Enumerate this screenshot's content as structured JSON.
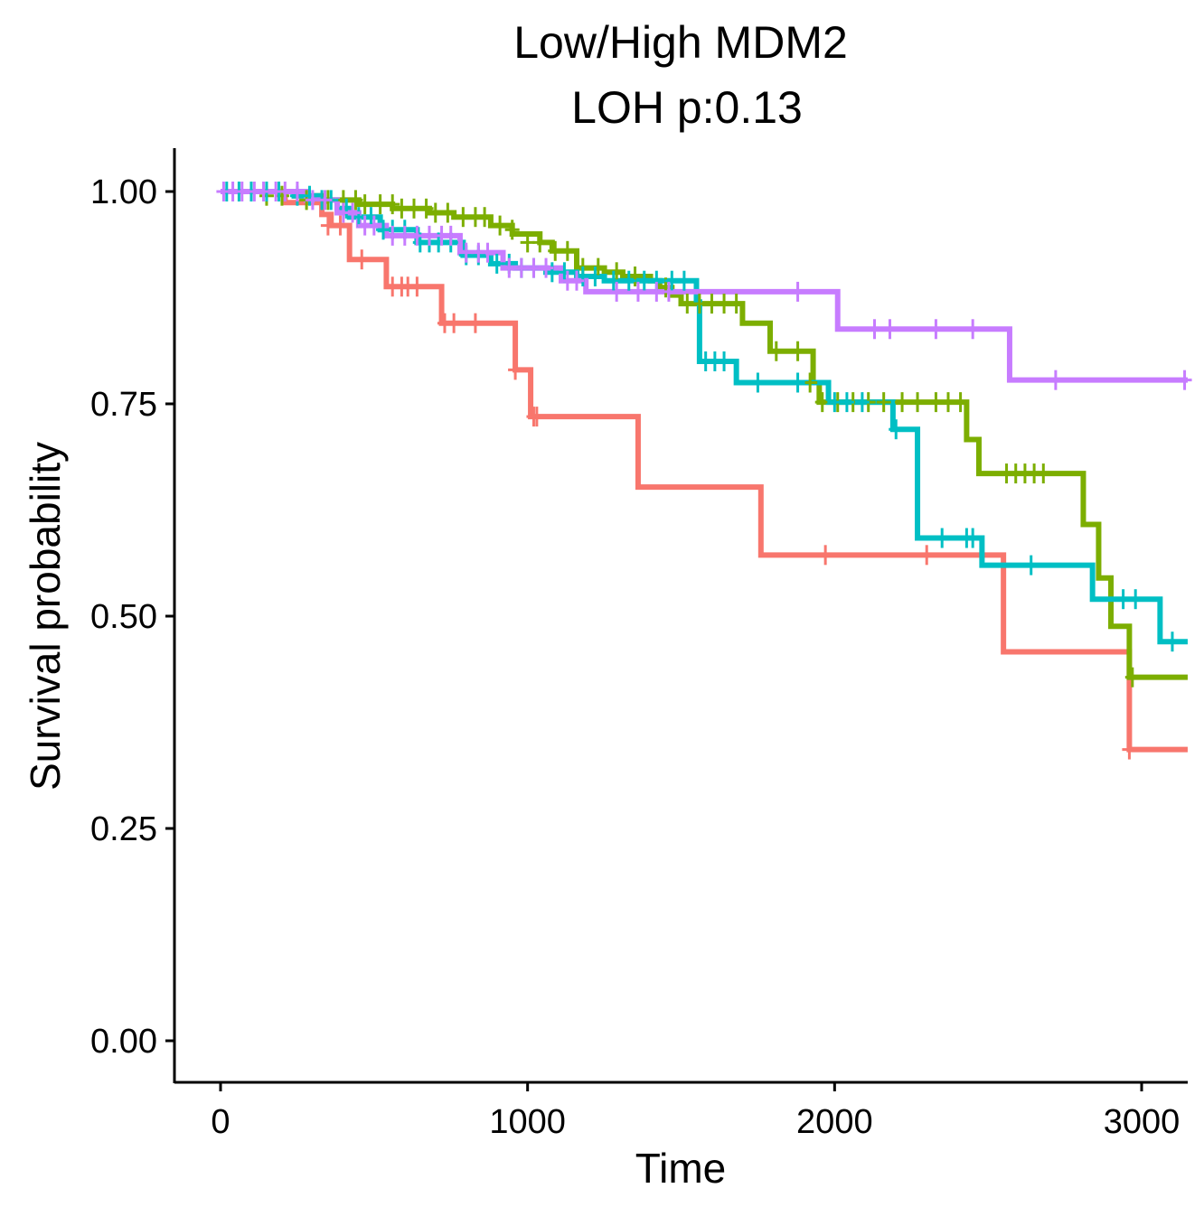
{
  "chart_data": {
    "type": "line",
    "subtype": "kaplan-meier",
    "title_lines": [
      "Low/High MDM2",
      "LOH p:0.13"
    ],
    "xlabel": "Time",
    "ylabel": "Survival probability",
    "xlim": [
      -150,
      3150
    ],
    "ylim": [
      -0.05,
      1.05
    ],
    "x_ticks": [
      0,
      1000,
      2000,
      3000
    ],
    "x_tick_labels": [
      "0",
      "1000",
      "2000",
      "3000"
    ],
    "y_ticks": [
      0,
      0.25,
      0.5,
      0.75,
      1.0
    ],
    "y_tick_labels": [
      "0.00",
      "0.25",
      "0.50",
      "0.75",
      "1.00"
    ],
    "grid": false,
    "legend": "none",
    "series": [
      {
        "color": "#F8766D",
        "steps": [
          [
            0,
            1.0
          ],
          [
            210,
            0.987
          ],
          [
            330,
            0.973
          ],
          [
            360,
            0.96
          ],
          [
            420,
            0.92
          ],
          [
            540,
            0.888
          ],
          [
            720,
            0.845
          ],
          [
            960,
            0.79
          ],
          [
            1010,
            0.735
          ],
          [
            1360,
            0.652
          ],
          [
            1760,
            0.572
          ],
          [
            2550,
            0.458
          ],
          [
            2960,
            0.343
          ],
          [
            3150,
            0.343
          ]
        ],
        "censored": [
          [
            330,
            0.987
          ],
          [
            350,
            0.96
          ],
          [
            390,
            0.96
          ],
          [
            460,
            0.92
          ],
          [
            560,
            0.888
          ],
          [
            590,
            0.888
          ],
          [
            610,
            0.888
          ],
          [
            640,
            0.888
          ],
          [
            730,
            0.845
          ],
          [
            760,
            0.845
          ],
          [
            830,
            0.845
          ],
          [
            960,
            0.79
          ],
          [
            1020,
            0.735
          ],
          [
            1030,
            0.735
          ],
          [
            1970,
            0.572
          ],
          [
            2300,
            0.572
          ],
          [
            2960,
            0.343
          ]
        ]
      },
      {
        "color": "#7CAE00",
        "steps": [
          [
            0,
            1.0
          ],
          [
            240,
            0.995
          ],
          [
            330,
            0.99
          ],
          [
            450,
            0.985
          ],
          [
            560,
            0.98
          ],
          [
            680,
            0.975
          ],
          [
            760,
            0.97
          ],
          [
            880,
            0.96
          ],
          [
            950,
            0.95
          ],
          [
            1040,
            0.94
          ],
          [
            1080,
            0.93
          ],
          [
            1160,
            0.91
          ],
          [
            1250,
            0.905
          ],
          [
            1310,
            0.9
          ],
          [
            1400,
            0.895
          ],
          [
            1430,
            0.887
          ],
          [
            1470,
            0.878
          ],
          [
            1500,
            0.868
          ],
          [
            1700,
            0.845
          ],
          [
            1790,
            0.812
          ],
          [
            1930,
            0.775
          ],
          [
            1950,
            0.752
          ],
          [
            2430,
            0.708
          ],
          [
            2470,
            0.668
          ],
          [
            2810,
            0.608
          ],
          [
            2860,
            0.545
          ],
          [
            2900,
            0.488
          ],
          [
            2960,
            0.428
          ],
          [
            3150,
            0.428
          ]
        ],
        "censored": [
          [
            150,
            0.995
          ],
          [
            200,
            0.995
          ],
          [
            280,
            0.99
          ],
          [
            350,
            0.99
          ],
          [
            400,
            0.99
          ],
          [
            440,
            0.99
          ],
          [
            470,
            0.985
          ],
          [
            520,
            0.985
          ],
          [
            560,
            0.985
          ],
          [
            590,
            0.98
          ],
          [
            630,
            0.98
          ],
          [
            670,
            0.98
          ],
          [
            700,
            0.975
          ],
          [
            740,
            0.975
          ],
          [
            790,
            0.97
          ],
          [
            830,
            0.97
          ],
          [
            860,
            0.97
          ],
          [
            910,
            0.96
          ],
          [
            950,
            0.955
          ],
          [
            1000,
            0.94
          ],
          [
            1040,
            0.94
          ],
          [
            1090,
            0.93
          ],
          [
            1130,
            0.93
          ],
          [
            1180,
            0.91
          ],
          [
            1230,
            0.91
          ],
          [
            1290,
            0.905
          ],
          [
            1350,
            0.9
          ],
          [
            1450,
            0.887
          ],
          [
            1520,
            0.868
          ],
          [
            1560,
            0.868
          ],
          [
            1600,
            0.868
          ],
          [
            1640,
            0.868
          ],
          [
            1680,
            0.868
          ],
          [
            1810,
            0.812
          ],
          [
            1880,
            0.812
          ],
          [
            1920,
            0.775
          ],
          [
            1960,
            0.752
          ],
          [
            2010,
            0.752
          ],
          [
            2060,
            0.752
          ],
          [
            2110,
            0.752
          ],
          [
            2160,
            0.752
          ],
          [
            2220,
            0.752
          ],
          [
            2270,
            0.752
          ],
          [
            2330,
            0.752
          ],
          [
            2370,
            0.752
          ],
          [
            2410,
            0.752
          ],
          [
            2560,
            0.668
          ],
          [
            2590,
            0.668
          ],
          [
            2620,
            0.668
          ],
          [
            2650,
            0.668
          ],
          [
            2680,
            0.668
          ],
          [
            2970,
            0.428
          ]
        ]
      },
      {
        "color": "#00BFC4",
        "steps": [
          [
            0,
            1.0
          ],
          [
            240,
            0.995
          ],
          [
            320,
            0.99
          ],
          [
            380,
            0.98
          ],
          [
            420,
            0.97
          ],
          [
            520,
            0.955
          ],
          [
            640,
            0.94
          ],
          [
            790,
            0.925
          ],
          [
            880,
            0.915
          ],
          [
            960,
            0.91
          ],
          [
            1060,
            0.905
          ],
          [
            1160,
            0.9
          ],
          [
            1250,
            0.895
          ],
          [
            1550,
            0.87
          ],
          [
            1560,
            0.8
          ],
          [
            1680,
            0.775
          ],
          [
            1980,
            0.752
          ],
          [
            2190,
            0.72
          ],
          [
            2270,
            0.592
          ],
          [
            2480,
            0.56
          ],
          [
            2840,
            0.52
          ],
          [
            3060,
            0.47
          ],
          [
            3150,
            0.47
          ]
        ],
        "censored": [
          [
            20,
            1.0
          ],
          [
            60,
            1.0
          ],
          [
            100,
            1.0
          ],
          [
            150,
            1.0
          ],
          [
            190,
            1.0
          ],
          [
            250,
            0.995
          ],
          [
            290,
            0.995
          ],
          [
            330,
            0.99
          ],
          [
            360,
            0.99
          ],
          [
            410,
            0.98
          ],
          [
            450,
            0.97
          ],
          [
            490,
            0.97
          ],
          [
            530,
            0.955
          ],
          [
            560,
            0.955
          ],
          [
            600,
            0.955
          ],
          [
            650,
            0.94
          ],
          [
            680,
            0.94
          ],
          [
            710,
            0.94
          ],
          [
            750,
            0.94
          ],
          [
            800,
            0.925
          ],
          [
            840,
            0.925
          ],
          [
            900,
            0.915
          ],
          [
            940,
            0.915
          ],
          [
            980,
            0.91
          ],
          [
            1020,
            0.91
          ],
          [
            1080,
            0.905
          ],
          [
            1120,
            0.905
          ],
          [
            1180,
            0.9
          ],
          [
            1220,
            0.9
          ],
          [
            1280,
            0.895
          ],
          [
            1330,
            0.895
          ],
          [
            1380,
            0.895
          ],
          [
            1420,
            0.895
          ],
          [
            1470,
            0.895
          ],
          [
            1510,
            0.895
          ],
          [
            1580,
            0.8
          ],
          [
            1610,
            0.8
          ],
          [
            1640,
            0.8
          ],
          [
            1750,
            0.775
          ],
          [
            1880,
            0.775
          ],
          [
            2000,
            0.752
          ],
          [
            2040,
            0.752
          ],
          [
            2090,
            0.752
          ],
          [
            2200,
            0.72
          ],
          [
            2350,
            0.592
          ],
          [
            2430,
            0.592
          ],
          [
            2450,
            0.592
          ],
          [
            2640,
            0.56
          ],
          [
            2940,
            0.52
          ],
          [
            2980,
            0.52
          ],
          [
            3100,
            0.47
          ]
        ]
      },
      {
        "color": "#C77CFF",
        "steps": [
          [
            0,
            1.0
          ],
          [
            280,
            0.99
          ],
          [
            380,
            0.975
          ],
          [
            450,
            0.96
          ],
          [
            540,
            0.948
          ],
          [
            780,
            0.928
          ],
          [
            920,
            0.91
          ],
          [
            1110,
            0.895
          ],
          [
            1190,
            0.882
          ],
          [
            2010,
            0.838
          ],
          [
            2570,
            0.778
          ],
          [
            3150,
            0.778
          ]
        ],
        "censored": [
          [
            10,
            1.0
          ],
          [
            40,
            1.0
          ],
          [
            70,
            1.0
          ],
          [
            110,
            1.0
          ],
          [
            140,
            1.0
          ],
          [
            180,
            1.0
          ],
          [
            210,
            1.0
          ],
          [
            250,
            1.0
          ],
          [
            300,
            0.99
          ],
          [
            340,
            0.99
          ],
          [
            400,
            0.975
          ],
          [
            430,
            0.975
          ],
          [
            470,
            0.96
          ],
          [
            500,
            0.96
          ],
          [
            560,
            0.948
          ],
          [
            600,
            0.948
          ],
          [
            640,
            0.948
          ],
          [
            680,
            0.948
          ],
          [
            720,
            0.948
          ],
          [
            750,
            0.948
          ],
          [
            800,
            0.928
          ],
          [
            840,
            0.928
          ],
          [
            870,
            0.928
          ],
          [
            940,
            0.91
          ],
          [
            980,
            0.91
          ],
          [
            1020,
            0.91
          ],
          [
            1060,
            0.91
          ],
          [
            1130,
            0.895
          ],
          [
            1160,
            0.895
          ],
          [
            1290,
            0.882
          ],
          [
            1360,
            0.882
          ],
          [
            1420,
            0.882
          ],
          [
            1460,
            0.882
          ],
          [
            1880,
            0.882
          ],
          [
            2130,
            0.838
          ],
          [
            2180,
            0.838
          ],
          [
            2330,
            0.838
          ],
          [
            2450,
            0.838
          ],
          [
            2720,
            0.778
          ],
          [
            3140,
            0.778
          ]
        ]
      }
    ]
  }
}
